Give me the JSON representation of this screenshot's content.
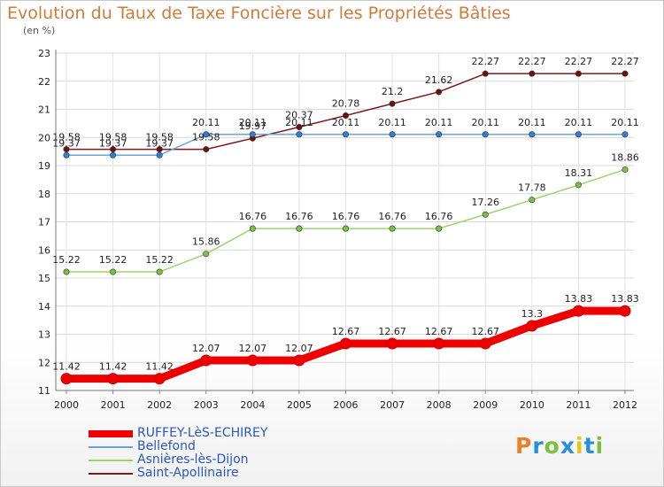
{
  "title": "Evolution du Taux de Taxe Foncière sur les Propriétés Bâties",
  "subtitle": "(en %)",
  "logo": {
    "text": "Proxiti",
    "colors": [
      "#e8812a",
      "#2a8fd9",
      "#7cbf3a",
      "#2a8fd9",
      "#e8c21a",
      "#2a8fd9",
      "#7cbf3a"
    ]
  },
  "chart_data": {
    "type": "line",
    "x": [
      "2000",
      "2001",
      "2002",
      "2003",
      "2004",
      "2005",
      "2006",
      "2007",
      "2008",
      "2009",
      "2010",
      "2011",
      "2012"
    ],
    "ylim": [
      11,
      23
    ],
    "yticks": [
      11,
      12,
      13,
      14,
      15,
      16,
      17,
      18,
      19,
      20,
      21,
      22,
      23
    ],
    "grid": true,
    "series": [
      {
        "name": "RUFFEY-LèS-ECHIREY",
        "color": "#ee0000",
        "values": [
          11.42,
          11.42,
          11.42,
          12.07,
          12.07,
          12.07,
          12.67,
          12.67,
          12.67,
          12.67,
          13.3,
          13.83,
          13.83
        ],
        "labels": [
          "11.42",
          "11.42",
          "11.42",
          "12.07",
          "12.07",
          "12.07",
          "12.67",
          "12.67",
          "12.67",
          "12.67",
          "13.3",
          "13.83",
          "13.83"
        ]
      },
      {
        "name": "Bellefond",
        "color": "#6fa3d6",
        "values": [
          19.37,
          19.37,
          19.37,
          20.11,
          20.11,
          20.11,
          20.11,
          20.11,
          20.11,
          20.11,
          20.11,
          20.11,
          20.11
        ],
        "labels": [
          "19.37",
          "19.37",
          "19.37",
          "20.11",
          "20.11",
          "20.11",
          "20.11",
          "20.11",
          "20.11",
          "20.11",
          "20.11",
          "20.11",
          "20.11"
        ]
      },
      {
        "name": "Asnières-lès-Dijon",
        "color": "#9ad66a",
        "values": [
          15.22,
          15.22,
          15.22,
          15.86,
          16.76,
          16.76,
          16.76,
          16.76,
          16.76,
          17.26,
          17.78,
          18.31,
          18.86
        ],
        "labels": [
          "15.22",
          "15.22",
          "15.22",
          "15.86",
          "16.76",
          "16.76",
          "16.76",
          "16.76",
          "16.76",
          "17.26",
          "17.78",
          "18.31",
          "18.86"
        ]
      },
      {
        "name": "Saint-Apollinaire",
        "color": "#7a1a1a",
        "values": [
          19.58,
          19.58,
          19.58,
          19.58,
          19.97,
          20.37,
          20.78,
          21.2,
          21.62,
          22.27,
          22.27,
          22.27,
          22.27
        ],
        "labels": [
          "19.58",
          "19.58",
          "19.58",
          "19.58",
          "19.97",
          "20.37",
          "20.78",
          "21.2",
          "21.62",
          "22.27",
          "22.27",
          "22.27",
          "22.27"
        ]
      }
    ]
  }
}
